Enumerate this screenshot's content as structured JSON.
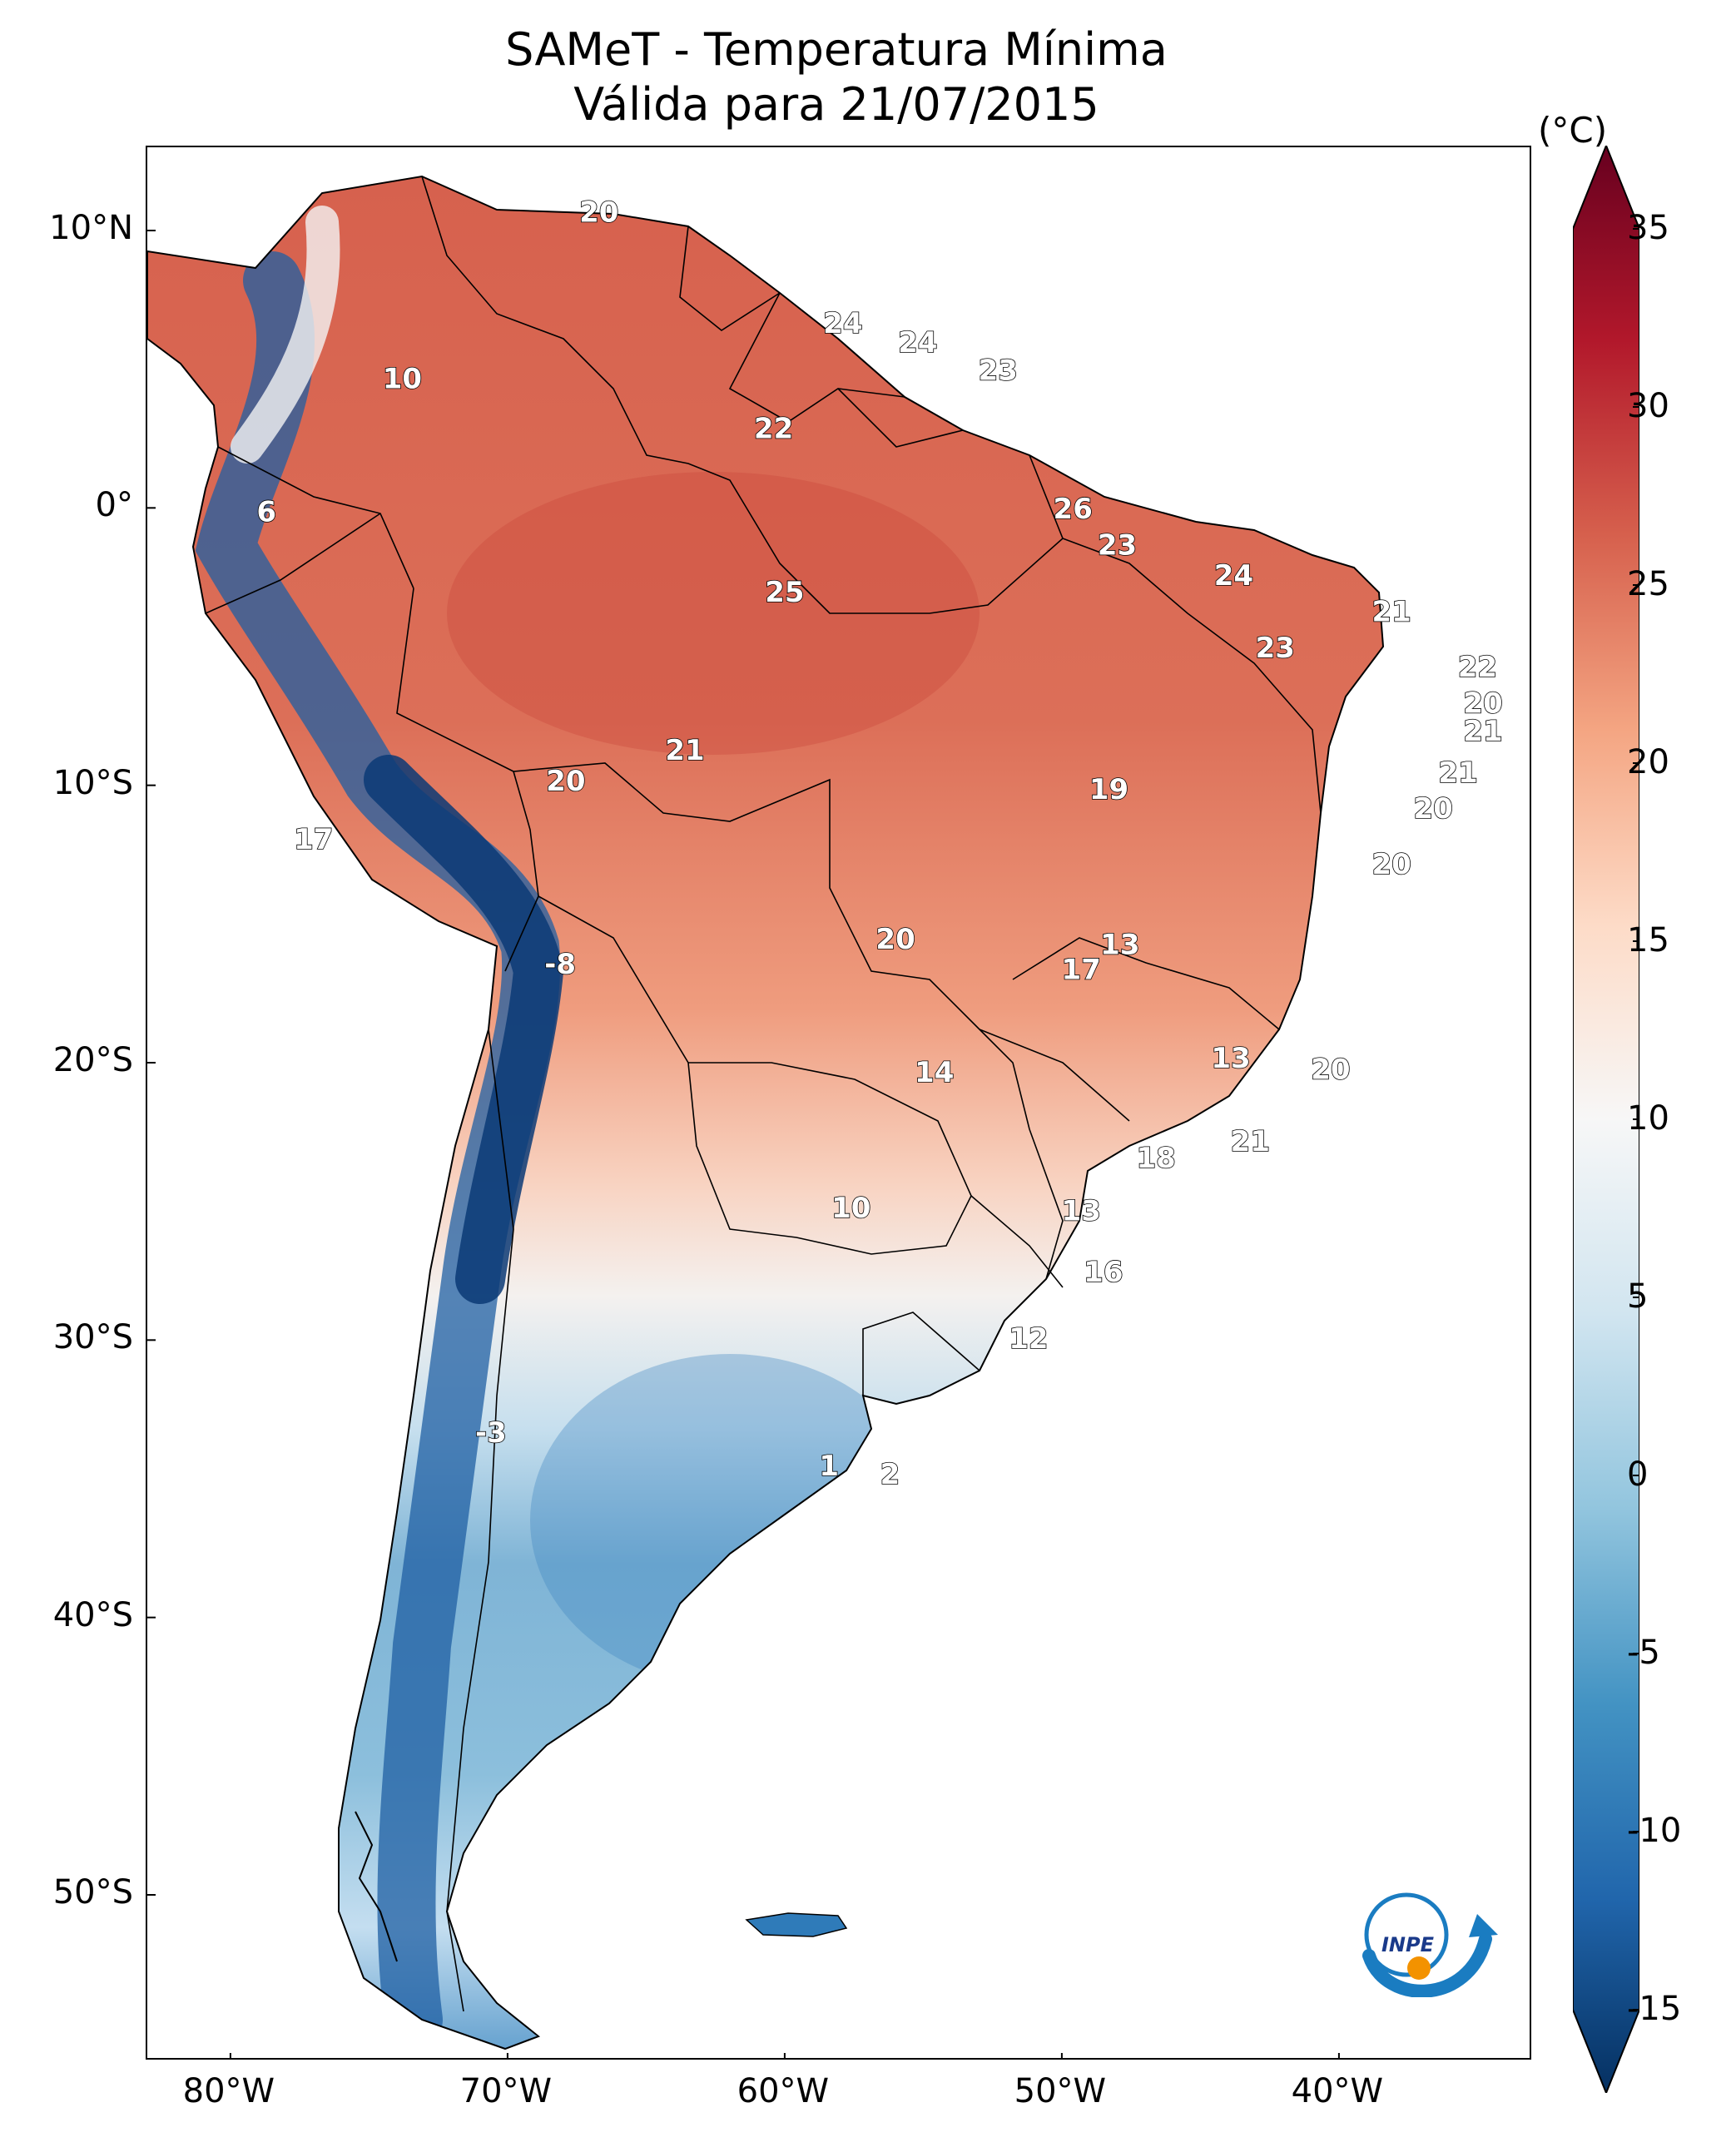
{
  "title": {
    "line1": "SAMeT - Temperatura Mínima",
    "line2": "Válida para 21/07/2015"
  },
  "map": {
    "region": "South America",
    "lon_range": [
      -83,
      -33
    ],
    "lat_range": [
      -56,
      13
    ],
    "lat_ticks": [
      {
        "value": 10,
        "label": "10°N"
      },
      {
        "value": 0,
        "label": "0°"
      },
      {
        "value": -10,
        "label": "10°S"
      },
      {
        "value": -20,
        "label": "20°S"
      },
      {
        "value": -30,
        "label": "30°S"
      },
      {
        "value": -40,
        "label": "40°S"
      },
      {
        "value": -50,
        "label": "50°S"
      }
    ],
    "lon_ticks": [
      {
        "value": -80,
        "label": "80°W"
      },
      {
        "value": -70,
        "label": "70°W"
      },
      {
        "value": -60,
        "label": "60°W"
      },
      {
        "value": -50,
        "label": "50°W"
      },
      {
        "value": -40,
        "label": "40°W"
      }
    ],
    "station_labels": [
      {
        "value": "20",
        "lon": -66.7,
        "lat": 10.6
      },
      {
        "value": "10",
        "lon": -73.8,
        "lat": 4.6
      },
      {
        "value": "6",
        "lon": -78.7,
        "lat": -0.2
      },
      {
        "value": "24",
        "lon": -57.9,
        "lat": 6.6
      },
      {
        "value": "24",
        "lon": -55.2,
        "lat": 5.9
      },
      {
        "value": "23",
        "lon": -52.3,
        "lat": 4.9
      },
      {
        "value": "22",
        "lon": -60.4,
        "lat": 2.8
      },
      {
        "value": "26",
        "lon": -49.6,
        "lat": -0.1
      },
      {
        "value": "25",
        "lon": -60.0,
        "lat": -3.1
      },
      {
        "value": "23",
        "lon": -48.0,
        "lat": -1.4
      },
      {
        "value": "24",
        "lon": -43.8,
        "lat": -2.5
      },
      {
        "value": "21",
        "lon": -38.1,
        "lat": -3.8
      },
      {
        "value": "23",
        "lon": -42.3,
        "lat": -5.1
      },
      {
        "value": "22",
        "lon": -35.0,
        "lat": -5.8
      },
      {
        "value": "20",
        "lon": -34.8,
        "lat": -7.1
      },
      {
        "value": "21",
        "lon": -34.8,
        "lat": -8.1
      },
      {
        "value": "21",
        "lon": -35.7,
        "lat": -9.6
      },
      {
        "value": "20",
        "lon": -36.6,
        "lat": -10.9
      },
      {
        "value": "20",
        "lon": -38.1,
        "lat": -12.9
      },
      {
        "value": "19",
        "lon": -48.3,
        "lat": -10.2
      },
      {
        "value": "21",
        "lon": -63.6,
        "lat": -8.8
      },
      {
        "value": "20",
        "lon": -67.9,
        "lat": -9.9
      },
      {
        "value": "17",
        "lon": -77.0,
        "lat": -12.0
      },
      {
        "value": "20",
        "lon": -56.0,
        "lat": -15.6
      },
      {
        "value": "13",
        "lon": -47.9,
        "lat": -15.8
      },
      {
        "value": "17",
        "lon": -49.3,
        "lat": -16.7
      },
      {
        "value": "-8",
        "lon": -68.1,
        "lat": -16.5
      },
      {
        "value": "14",
        "lon": -54.6,
        "lat": -20.4
      },
      {
        "value": "13",
        "lon": -43.9,
        "lat": -19.9
      },
      {
        "value": "20",
        "lon": -40.3,
        "lat": -20.3
      },
      {
        "value": "18",
        "lon": -46.6,
        "lat": -23.5
      },
      {
        "value": "21",
        "lon": -43.2,
        "lat": -22.9
      },
      {
        "value": "10",
        "lon": -57.6,
        "lat": -25.3
      },
      {
        "value": "13",
        "lon": -49.3,
        "lat": -25.4
      },
      {
        "value": "16",
        "lon": -48.5,
        "lat": -27.6
      },
      {
        "value": "12",
        "lon": -51.2,
        "lat": -30.0
      },
      {
        "value": "-3",
        "lon": -70.6,
        "lat": -33.4
      },
      {
        "value": "1",
        "lon": -58.4,
        "lat": -34.6
      },
      {
        "value": "2",
        "lon": -56.2,
        "lat": -34.9
      }
    ]
  },
  "colorbar": {
    "unit": "(°C)",
    "min": -15,
    "max": 35,
    "ticks": [
      35,
      30,
      25,
      20,
      15,
      10,
      5,
      0,
      -5,
      -10,
      -15
    ],
    "tick_labels": [
      "35",
      "30",
      "25",
      "20",
      "15",
      "10",
      "5",
      "0",
      "-5",
      "-10",
      "-15"
    ],
    "colormap": "RdBu_r",
    "colors": [
      "#053061",
      "#2166ac",
      "#4393c3",
      "#92c5de",
      "#d1e5f0",
      "#f7f7f7",
      "#fddbc7",
      "#f4a582",
      "#d6604d",
      "#b2182b",
      "#67001f"
    ]
  },
  "logo": {
    "text": "INPE",
    "colors": {
      "ring": "#1a7cc1",
      "dot": "#f39200"
    }
  }
}
